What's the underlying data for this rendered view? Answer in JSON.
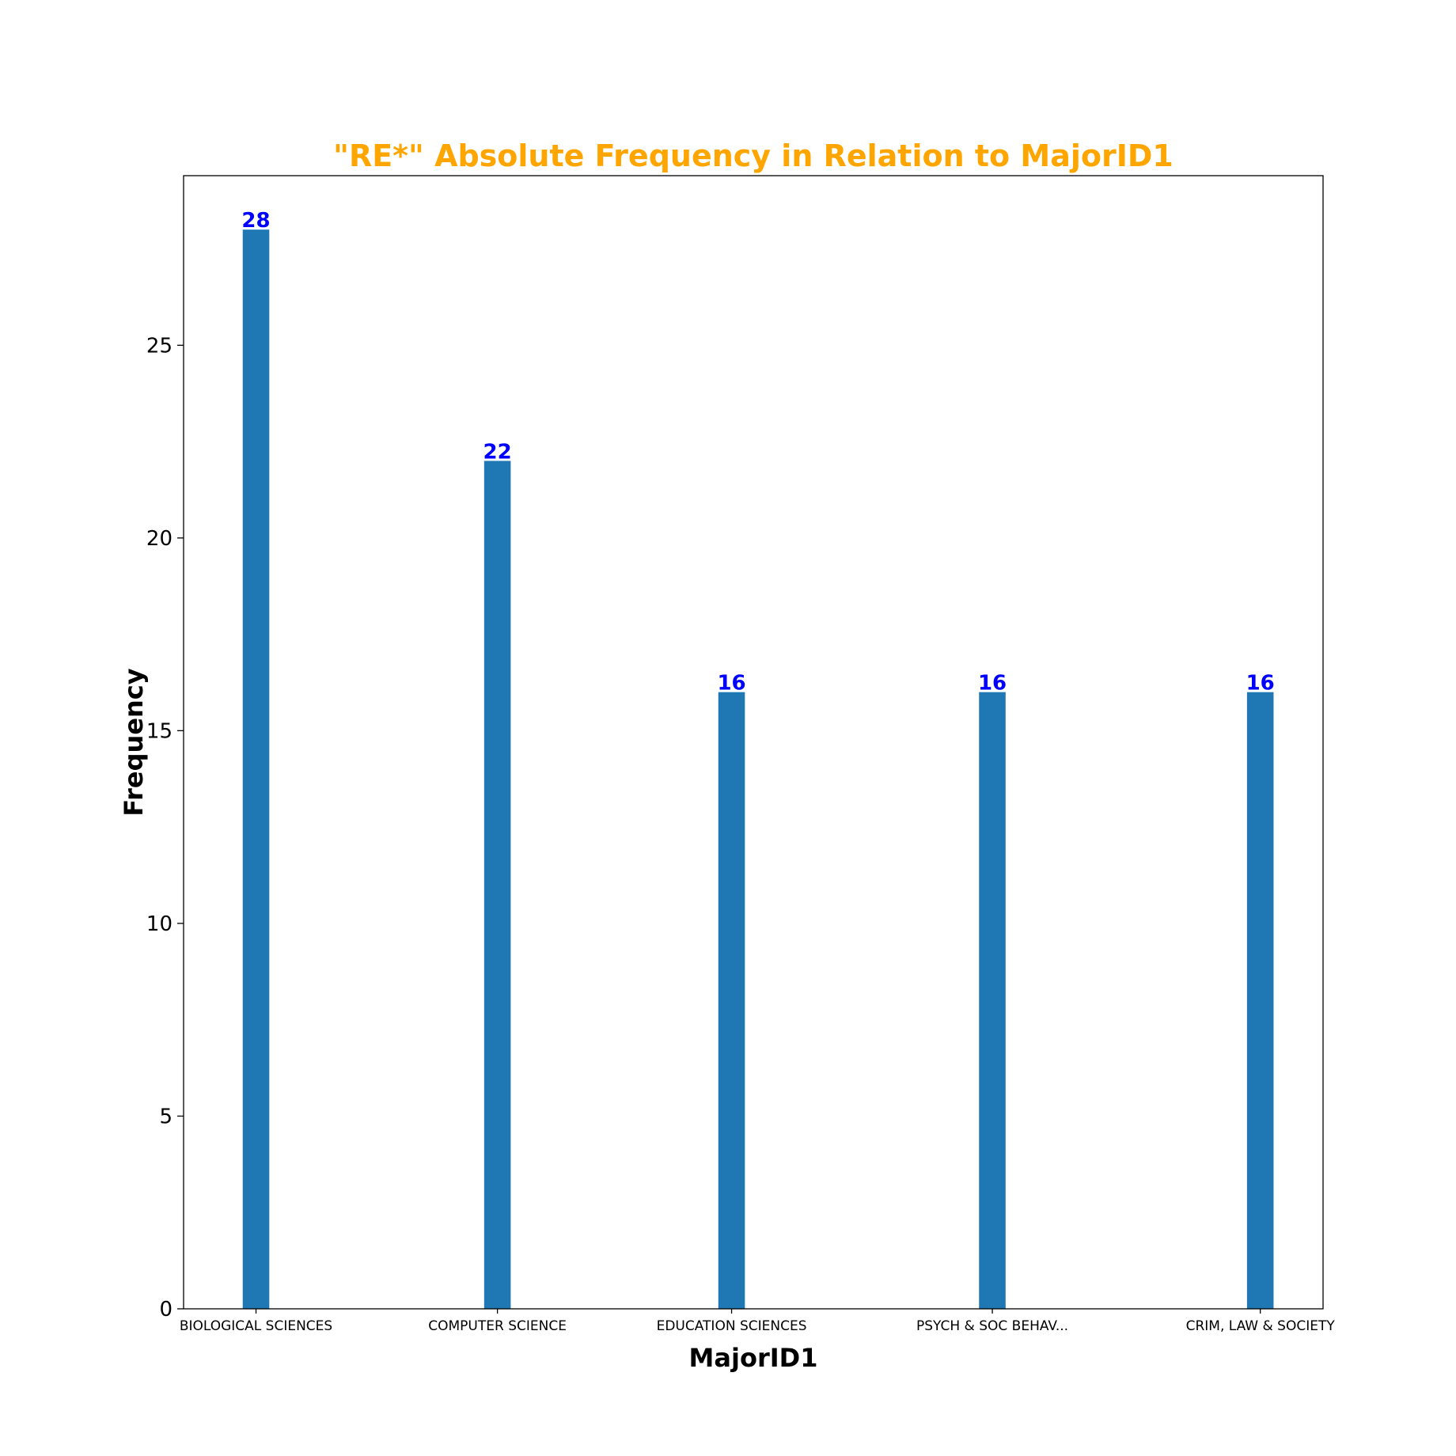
{
  "chart_data": {
    "type": "bar",
    "title": "\"RE*\" Absolute Frequency in Relation to MajorID1",
    "xlabel": "MajorID1",
    "ylabel": "Frequency",
    "categories": [
      "BIOLOGICAL SCIENCES",
      "COMPUTER SCIENCE",
      "EDUCATION SCIENCES",
      "PSYCH & SOC BEHAV...",
      "CRIM, LAW & SOCIETY"
    ],
    "x": [
      0.5,
      1.5,
      2.47,
      3.55,
      4.66
    ],
    "xlim": [
      0.2,
      4.92
    ],
    "values": [
      28,
      22,
      16,
      16,
      16
    ],
    "ylim": [
      0,
      29.4
    ],
    "yticks": [
      0,
      5,
      10,
      15,
      20,
      25
    ],
    "grid": false,
    "bar_width": 0.11,
    "colors": {
      "bar": "#1f77b4",
      "title": "#ffa500",
      "data_label": "#0000ff",
      "axis": "#000000"
    }
  }
}
